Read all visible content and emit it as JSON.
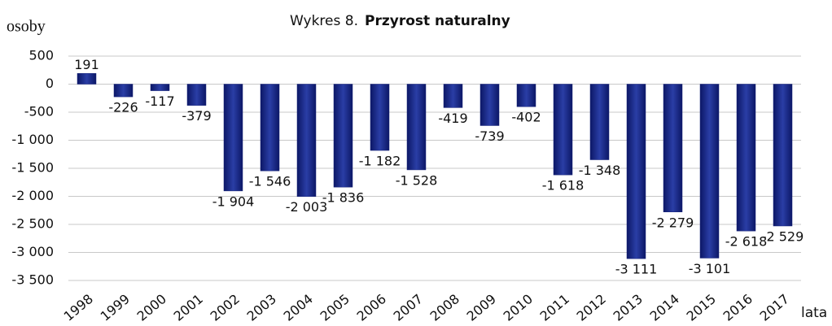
{
  "chart_data": {
    "type": "bar",
    "title_prefix": "Wykres 8.",
    "title": "Przyrost naturalny",
    "y_label": "osoby",
    "x_label": "lata",
    "categories": [
      "1998",
      "1999",
      "2000",
      "2001",
      "2002",
      "2003",
      "2004",
      "2005",
      "2006",
      "2007",
      "2008",
      "2009",
      "2010",
      "2011",
      "2012",
      "2013",
      "2014",
      "2015",
      "2016",
      "2017"
    ],
    "values": [
      191,
      -226,
      -117,
      -379,
      -1904,
      -1546,
      -2003,
      -1836,
      -1182,
      -1528,
      -419,
      -739,
      -402,
      -1618,
      -1348,
      -3111,
      -2279,
      -3101,
      -2618,
      -2529
    ],
    "value_labels": [
      "191",
      "-226",
      "-117",
      "-379",
      "-1 904",
      "-1 546",
      "-2 003",
      "-1 836",
      "-1 182",
      "-1 528",
      "-419",
      "-739",
      "-402",
      "-1 618",
      "-1 348",
      "-3 111",
      "-2 279",
      "-3 101",
      "-2 618",
      "-2 529"
    ],
    "color": "#16237a",
    "ylim": [
      -3500,
      500
    ],
    "yticks": [
      500,
      0,
      -500,
      {
        "value": -1000,
        "label": "-1 000"
      },
      {
        "value": -1500,
        "label": "-1 500"
      },
      {
        "value": -2000,
        "label": "-2 000"
      },
      {
        "value": -2500,
        "label": "-2 500"
      },
      {
        "value": -3000,
        "label": "-3 000"
      },
      {
        "value": -3500,
        "label": "-3 500"
      }
    ],
    "grid": true
  }
}
